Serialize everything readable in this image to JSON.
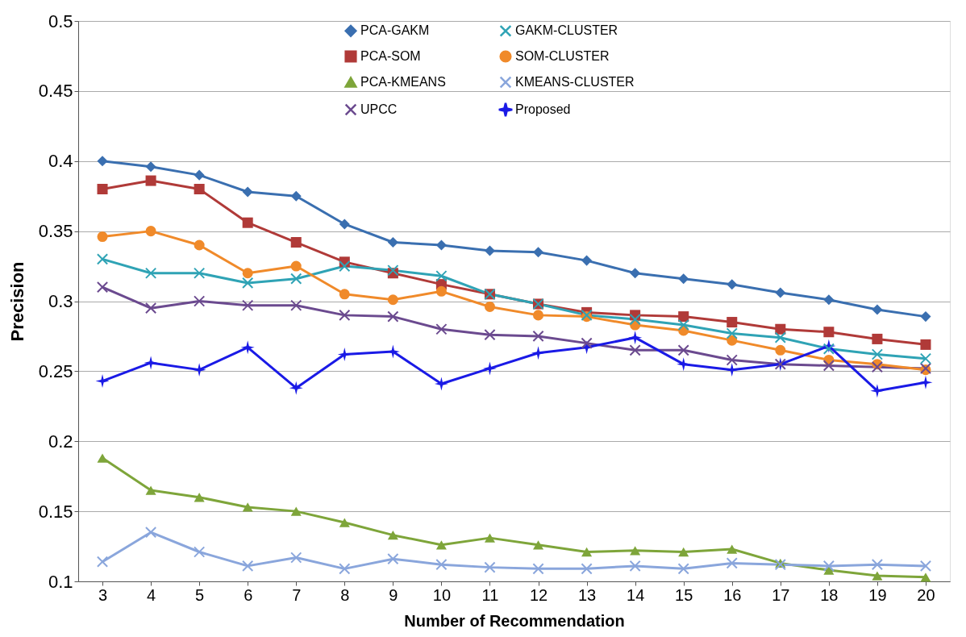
{
  "chart_data": {
    "type": "line",
    "xlabel": "Number of Recommendation",
    "ylabel": "Precision",
    "categories": [
      "3",
      "4",
      "5",
      "6",
      "7",
      "8",
      "9",
      "10",
      "11",
      "12",
      "13",
      "14",
      "15",
      "16",
      "17",
      "18",
      "19",
      "20"
    ],
    "ylim": [
      0.1,
      0.5
    ],
    "yticks": [
      0.1,
      0.15,
      0.2,
      0.25,
      0.3,
      0.35,
      0.4,
      0.45,
      0.5
    ],
    "grid": "y",
    "legend": "top",
    "series": [
      {
        "name": "PCA-GAKM",
        "color": "#3a6fb0",
        "marker": "diamond",
        "values": [
          0.4,
          0.396,
          0.39,
          0.378,
          0.375,
          0.355,
          0.342,
          0.34,
          0.336,
          0.335,
          0.329,
          0.32,
          0.316,
          0.312,
          0.306,
          0.301,
          0.294,
          0.289
        ]
      },
      {
        "name": "PCA-SOM",
        "color": "#b03a38",
        "marker": "square",
        "values": [
          0.38,
          0.386,
          0.38,
          0.356,
          0.342,
          0.328,
          0.32,
          0.312,
          0.305,
          0.298,
          0.292,
          0.29,
          0.289,
          0.285,
          0.28,
          0.278,
          0.273,
          0.269
        ]
      },
      {
        "name": "PCA-KMEANS",
        "color": "#7ea53a",
        "marker": "triangle",
        "values": [
          0.188,
          0.165,
          0.16,
          0.153,
          0.15,
          0.142,
          0.133,
          0.126,
          0.131,
          0.126,
          0.121,
          0.122,
          0.121,
          0.123,
          0.113,
          0.108,
          0.104,
          0.103
        ]
      },
      {
        "name": "UPCC",
        "color": "#6b4a8f",
        "marker": "cross",
        "values": [
          0.31,
          0.295,
          0.3,
          0.297,
          0.297,
          0.29,
          0.289,
          0.28,
          0.276,
          0.275,
          0.27,
          0.265,
          0.265,
          0.258,
          0.255,
          0.254,
          0.253,
          0.252
        ]
      },
      {
        "name": "GAKM-CLUSTER",
        "color": "#2fa3b5",
        "marker": "cross",
        "values": [
          0.33,
          0.32,
          0.32,
          0.313,
          0.316,
          0.325,
          0.322,
          0.318,
          0.305,
          0.298,
          0.29,
          0.287,
          0.283,
          0.277,
          0.274,
          0.266,
          0.262,
          0.259
        ]
      },
      {
        "name": "SOM-CLUSTER",
        "color": "#f08a2a",
        "marker": "circle",
        "values": [
          0.346,
          0.35,
          0.34,
          0.32,
          0.325,
          0.305,
          0.301,
          0.307,
          0.296,
          0.29,
          0.289,
          0.283,
          0.279,
          0.272,
          0.265,
          0.258,
          0.255,
          0.251
        ]
      },
      {
        "name": "KMEANS-CLUSTER",
        "color": "#8aa6dc",
        "marker": "cross",
        "values": [
          0.114,
          0.135,
          0.121,
          0.111,
          0.117,
          0.109,
          0.116,
          0.112,
          0.11,
          0.109,
          0.109,
          0.111,
          0.109,
          0.113,
          0.112,
          0.111,
          0.112,
          0.111
        ]
      },
      {
        "name": "Proposed",
        "color": "#1a1ae6",
        "marker": "star",
        "values": [
          0.243,
          0.256,
          0.251,
          0.267,
          0.238,
          0.262,
          0.264,
          0.241,
          0.252,
          0.263,
          0.267,
          0.274,
          0.255,
          0.251,
          0.255,
          0.268,
          0.236,
          0.242
        ]
      }
    ]
  }
}
